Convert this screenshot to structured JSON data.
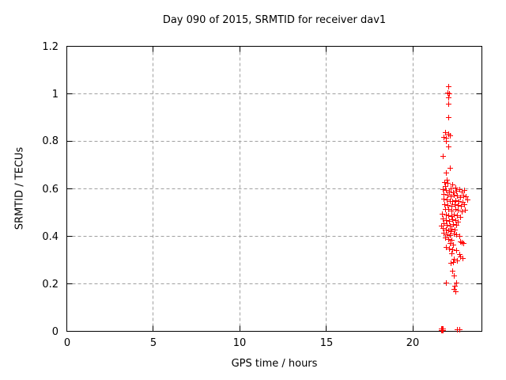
{
  "chart_data": {
    "type": "scatter",
    "title": "Day 090 of 2015, SRMTID for receiver dav1",
    "xlabel": "GPS time / hours",
    "ylabel": "SRMTID / TECUs",
    "xlim": [
      0,
      24
    ],
    "ylim": [
      0,
      1.2
    ],
    "x_ticks": {
      "values": [
        0,
        5,
        10,
        15,
        20
      ],
      "labels": [
        "0",
        "5",
        "10",
        "15",
        "20"
      ]
    },
    "y_ticks": {
      "values": [
        0,
        0.2,
        0.4,
        0.6,
        0.8,
        1,
        1.2
      ],
      "labels": [
        "0",
        "0.2",
        "0.4",
        "0.6",
        "0.8",
        "1",
        "1.2"
      ]
    },
    "grid": true,
    "legend": "none",
    "marker": "plus",
    "colors": {
      "points": "#ff0000",
      "grid": "#a0a0a0",
      "border": "#000000",
      "background": "#ffffff"
    },
    "series": [
      {
        "name": "SRMTID",
        "points": [
          [
            22.08,
            1.03
          ],
          [
            22.05,
            1.005
          ],
          [
            22.12,
            1.0
          ],
          [
            22.06,
            0.985
          ],
          [
            22.09,
            0.958
          ],
          [
            22.08,
            0.9
          ],
          [
            21.88,
            0.836
          ],
          [
            22.1,
            0.83
          ],
          [
            21.8,
            0.818
          ],
          [
            21.96,
            0.812
          ],
          [
            22.17,
            0.822
          ],
          [
            21.92,
            0.8
          ],
          [
            22.06,
            0.778
          ],
          [
            21.78,
            0.737
          ],
          [
            21.93,
            0.668
          ],
          [
            22.16,
            0.688
          ],
          [
            21.97,
            0.638
          ],
          [
            21.84,
            0.627
          ],
          [
            22.05,
            0.622
          ],
          [
            22.3,
            0.615
          ],
          [
            21.9,
            0.61
          ],
          [
            22.48,
            0.603
          ],
          [
            22.22,
            0.6
          ],
          [
            21.75,
            0.596
          ],
          [
            21.95,
            0.592
          ],
          [
            22.12,
            0.588
          ],
          [
            22.35,
            0.584
          ],
          [
            22.55,
            0.591
          ],
          [
            22.7,
            0.596
          ],
          [
            22.85,
            0.588
          ],
          [
            23.0,
            0.593
          ],
          [
            21.82,
            0.576
          ],
          [
            22.02,
            0.572
          ],
          [
            22.2,
            0.568
          ],
          [
            22.42,
            0.574
          ],
          [
            22.6,
            0.57
          ],
          [
            22.78,
            0.565
          ],
          [
            22.95,
            0.571
          ],
          [
            23.1,
            0.567
          ],
          [
            21.79,
            0.556
          ],
          [
            21.98,
            0.552
          ],
          [
            22.15,
            0.548
          ],
          [
            22.32,
            0.545
          ],
          [
            22.5,
            0.551
          ],
          [
            22.68,
            0.547
          ],
          [
            22.88,
            0.544
          ],
          [
            23.18,
            0.552
          ],
          [
            21.85,
            0.535
          ],
          [
            22.05,
            0.531
          ],
          [
            22.25,
            0.528
          ],
          [
            22.45,
            0.534
          ],
          [
            22.62,
            0.53
          ],
          [
            22.8,
            0.527
          ],
          [
            22.98,
            0.532
          ],
          [
            21.9,
            0.515
          ],
          [
            22.1,
            0.512
          ],
          [
            22.28,
            0.508
          ],
          [
            22.48,
            0.514
          ],
          [
            22.65,
            0.51
          ],
          [
            22.85,
            0.505
          ],
          [
            23.02,
            0.511
          ],
          [
            21.72,
            0.495
          ],
          [
            21.92,
            0.491
          ],
          [
            22.08,
            0.488
          ],
          [
            22.25,
            0.484
          ],
          [
            22.42,
            0.491
          ],
          [
            22.58,
            0.487
          ],
          [
            22.75,
            0.481
          ],
          [
            21.78,
            0.472
          ],
          [
            21.95,
            0.468
          ],
          [
            22.12,
            0.464
          ],
          [
            22.3,
            0.471
          ],
          [
            22.48,
            0.467
          ],
          [
            22.65,
            0.461
          ],
          [
            21.82,
            0.452
          ],
          [
            22.0,
            0.448
          ],
          [
            22.18,
            0.444
          ],
          [
            22.35,
            0.451
          ],
          [
            22.52,
            0.447
          ],
          [
            21.66,
            0.443
          ],
          [
            21.75,
            0.432
          ],
          [
            21.93,
            0.428
          ],
          [
            22.1,
            0.424
          ],
          [
            22.28,
            0.431
          ],
          [
            22.45,
            0.427
          ],
          [
            22.2,
            0.421
          ],
          [
            21.8,
            0.412
          ],
          [
            22.0,
            0.408
          ],
          [
            22.18,
            0.404
          ],
          [
            22.38,
            0.411
          ],
          [
            22.55,
            0.407
          ],
          [
            22.72,
            0.401
          ],
          [
            21.88,
            0.392
          ],
          [
            22.08,
            0.388
          ],
          [
            22.28,
            0.384
          ],
          [
            22.75,
            0.378
          ],
          [
            22.85,
            0.374
          ],
          [
            22.95,
            0.371
          ],
          [
            22.15,
            0.369
          ],
          [
            22.35,
            0.364
          ],
          [
            21.95,
            0.352
          ],
          [
            22.12,
            0.348
          ],
          [
            22.32,
            0.344
          ],
          [
            22.52,
            0.341
          ],
          [
            22.25,
            0.328
          ],
          [
            22.7,
            0.322
          ],
          [
            22.78,
            0.314
          ],
          [
            22.88,
            0.307
          ],
          [
            22.4,
            0.304
          ],
          [
            22.6,
            0.297
          ],
          [
            22.35,
            0.291
          ],
          [
            22.2,
            0.287
          ],
          [
            22.32,
            0.255
          ],
          [
            22.38,
            0.234
          ],
          [
            21.92,
            0.205
          ],
          [
            22.52,
            0.204
          ],
          [
            22.45,
            0.19
          ],
          [
            22.42,
            0.176
          ],
          [
            22.48,
            0.168
          ],
          [
            21.68,
            0.004
          ],
          [
            21.71,
            0.004
          ],
          [
            21.74,
            0.004
          ],
          [
            21.77,
            0.004
          ],
          [
            21.69,
            0.009
          ],
          [
            21.72,
            0.009
          ],
          [
            21.75,
            0.009
          ],
          [
            22.6,
            0.007
          ],
          [
            22.74,
            0.007
          ]
        ]
      }
    ]
  }
}
